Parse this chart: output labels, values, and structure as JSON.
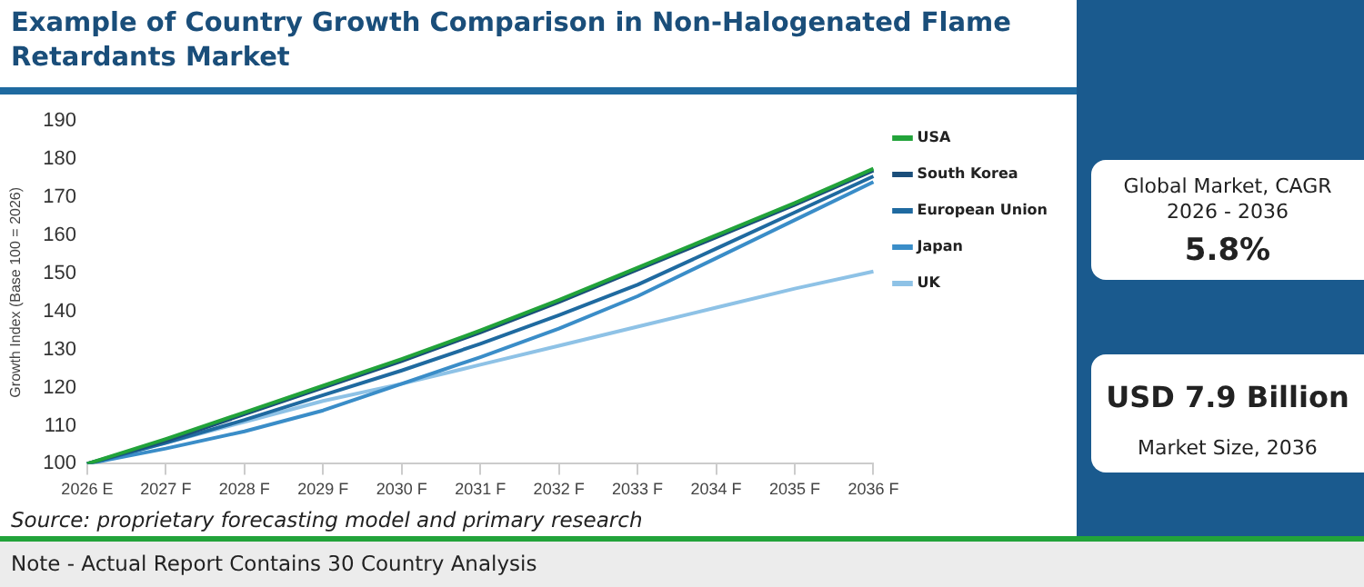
{
  "chart_data": {
    "type": "line",
    "title": "Example of Country Growth Comparison in Non-Halogenated Flame Retardants Market",
    "ylabel": "Growth Index (Base 100 = 2026)",
    "categories": [
      "2026 E",
      "2027 F",
      "2028 F",
      "2029 F",
      "2030 F",
      "2031 F",
      "2032 F",
      "2033 F",
      "2034 F",
      "2035 F",
      "2036 F"
    ],
    "series": [
      {
        "name": "USA",
        "color": "#22a33a",
        "values": [
          100,
          106.5,
          113.5,
          120.5,
          127.5,
          135,
          143,
          151.5,
          160,
          168.5,
          177.5
        ]
      },
      {
        "name": "South Korea",
        "color": "#1a4e7a",
        "values": [
          100,
          106,
          113,
          120,
          127,
          134.5,
          142.5,
          151,
          159.5,
          168,
          177
        ]
      },
      {
        "name": "European Union",
        "color": "#1f6aa0",
        "values": [
          100,
          105.5,
          111.5,
          118,
          124.5,
          131.5,
          139,
          147,
          156.5,
          166,
          175.5
        ]
      },
      {
        "name": "Japan",
        "color": "#3a8dc8",
        "values": [
          100,
          104,
          108.5,
          114,
          121,
          128,
          135.5,
          144,
          154,
          164,
          174
        ]
      },
      {
        "name": "UK",
        "color": "#8ec2e6",
        "values": [
          100,
          105.5,
          111,
          116.5,
          121,
          126,
          131,
          136,
          141,
          146,
          150.5
        ]
      }
    ],
    "ylim": [
      100,
      190
    ],
    "yticks": [
      100,
      110,
      120,
      130,
      140,
      150,
      160,
      170,
      180,
      190
    ],
    "grid": false,
    "legend": "right",
    "marker": "none",
    "line_style": "solid",
    "annotations": [
      "Source: proprietary forecasting model and primary research",
      "Note - Actual Report Contains 30 Country Analysis",
      "Global Market, CAGR 2026 - 2036",
      "5.8%",
      "USD 7.9 Billion",
      "Market Size, 2036"
    ]
  }
}
